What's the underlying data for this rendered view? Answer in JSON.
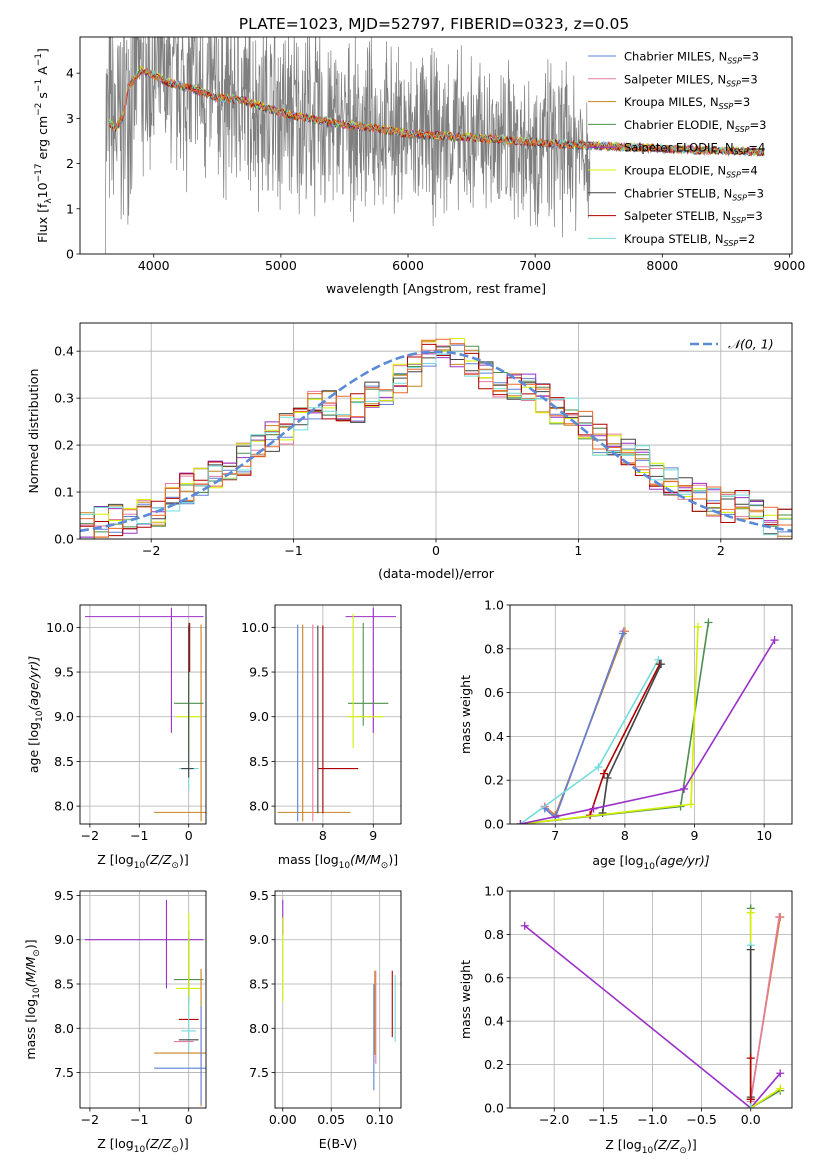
{
  "figure": {
    "title": "PLATE=1023, MJD=52797, FIBERID=0323, z=0.05"
  },
  "colors": {
    "Chabrier MILES": "#5e81d8",
    "Salpeter MILES": "#e57ba0",
    "Kroupa MILES": "#c7821f",
    "Chabrier ELODIE": "#4e8f4e",
    "Salpeter ELODIE": "#9b30c8",
    "Kroupa ELODIE": "#d4f000",
    "Chabrier STELIB": "#444444",
    "Salpeter STELIB": "#b00000",
    "Kroupa STELIB": "#74dcdc",
    "orange_model": "#ec6a2a",
    "observed": "#7f7f7f",
    "normal": "#5b8bd8"
  },
  "chart_data": [
    {
      "id": "spectrum",
      "type": "line",
      "title": "PLATE=1023, MJD=52797, FIBERID=0323, z=0.05",
      "xlabel": "wavelength [Angstrom, rest frame]",
      "ylabel_main": "Flux [f",
      "ylabel_sub": "λ",
      "ylabel_rest": "10",
      "ylabel_exp": "−17",
      "ylabel_tail": " erg cm",
      "ylabel_tail_exp": "−2",
      "ylabel_tail2": " s",
      "ylabel_tail2_exp": "−1",
      "ylabel_tail3": " A",
      "ylabel_tail3_exp": "−1",
      "ylabel_end": "]",
      "xlim": [
        3420,
        9020
      ],
      "ylim": [
        0,
        4.8
      ],
      "xticks": [
        4000,
        5000,
        6000,
        7000,
        8000,
        9000
      ],
      "yticks": [
        0,
        1,
        2,
        3,
        4
      ],
      "legend_position": "top-right",
      "legend": [
        {
          "name": "Chabrier MILES",
          "nssp": "3"
        },
        {
          "name": "Salpeter MILES",
          "nssp": "3"
        },
        {
          "name": "Kroupa MILES",
          "nssp": "3"
        },
        {
          "name": "Chabrier ELODIE",
          "nssp": "3"
        },
        {
          "name": "Salpeter ELODIE",
          "nssp": "4"
        },
        {
          "name": "Kroupa ELODIE",
          "nssp": "4"
        },
        {
          "name": "Chabrier STELIB",
          "nssp": "3"
        },
        {
          "name": "Salpeter STELIB",
          "nssp": "3"
        },
        {
          "name": "Kroupa STELIB",
          "nssp": "2"
        }
      ],
      "nssp_label": "N",
      "nssp_sub": "SSP",
      "observed_range": [
        3620,
        7430
      ],
      "model_continuum": {
        "x": [
          3650,
          3700,
          3760,
          3800,
          3900,
          4000,
          4100,
          4300,
          4500,
          4700,
          4900,
          5100,
          5300,
          5500,
          5700,
          6000,
          6300,
          6600,
          6900,
          7200,
          7500,
          7800,
          8200,
          8600,
          8800
        ],
        "y": [
          2.9,
          2.75,
          3.05,
          3.7,
          4.05,
          3.95,
          3.8,
          3.65,
          3.45,
          3.4,
          3.2,
          3.05,
          2.95,
          2.85,
          2.8,
          2.65,
          2.6,
          2.55,
          2.48,
          2.42,
          2.38,
          2.35,
          2.3,
          2.26,
          2.25
        ]
      }
    },
    {
      "id": "residuals",
      "type": "step",
      "xlabel": "(data-model)/error",
      "ylabel": "Normed distribution",
      "xlim": [
        -2.5,
        2.5
      ],
      "ylim": [
        0,
        0.46
      ],
      "xticks": [
        -2,
        -1,
        0,
        1,
        2
      ],
      "yticks": [
        0.0,
        0.1,
        0.2,
        0.3,
        0.4
      ],
      "xtick_labels": [
        "−2",
        "−1",
        "0",
        "1",
        "2"
      ],
      "ytick_labels": [
        "0.0",
        "0.1",
        "0.2",
        "0.3",
        "0.4"
      ],
      "legend_label": "𝒩(0, 1)",
      "legend_position": "top-right",
      "bins": [
        -2.5,
        -2.4,
        -2.3,
        -2.2,
        -2.1,
        -2.0,
        -1.9,
        -1.8,
        -1.7,
        -1.6,
        -1.5,
        -1.4,
        -1.3,
        -1.2,
        -1.1,
        -1.0,
        -0.9,
        -0.8,
        -0.7,
        -0.6,
        -0.5,
        -0.4,
        -0.3,
        -0.2,
        -0.1,
        0.0,
        0.1,
        0.2,
        0.3,
        0.4,
        0.5,
        0.6,
        0.7,
        0.8,
        0.9,
        1.0,
        1.1,
        1.2,
        1.3,
        1.4,
        1.5,
        1.6,
        1.7,
        1.8,
        1.9,
        2.0,
        2.1,
        2.2,
        2.3,
        2.4,
        2.5
      ],
      "histogram": [
        0.03,
        0.035,
        0.04,
        0.045,
        0.05,
        0.055,
        0.09,
        0.11,
        0.12,
        0.14,
        0.16,
        0.17,
        0.2,
        0.22,
        0.235,
        0.26,
        0.28,
        0.29,
        0.27,
        0.28,
        0.3,
        0.32,
        0.34,
        0.36,
        0.4,
        0.42,
        0.4,
        0.38,
        0.35,
        0.33,
        0.33,
        0.32,
        0.3,
        0.28,
        0.27,
        0.24,
        0.21,
        0.2,
        0.19,
        0.17,
        0.14,
        0.12,
        0.11,
        0.09,
        0.08,
        0.07,
        0.07,
        0.06,
        0.04,
        0.035
      ]
    },
    {
      "id": "age_vs_Z",
      "type": "errorbar",
      "xlabel": "Z [log",
      "xlabel_sub": "10",
      "xlabel_tail": "(Z/Z",
      "xlabel_sun": "⊙",
      "xlabel_end": ")]",
      "ylabel": "age  [log",
      "ylabel_sub": "10",
      "ylabel_tail": "(age/yr)]",
      "xlim": [
        -2.2,
        0.35
      ],
      "ylim": [
        7.8,
        10.25
      ],
      "xticks": [
        -2,
        -1,
        0
      ],
      "xtick_labels": [
        "−2",
        "−1",
        "0"
      ],
      "yticks": [
        8.0,
        8.5,
        9.0,
        9.5,
        10.0
      ],
      "ytick_labels": [
        "8.0",
        "8.5",
        "9.0",
        "9.5",
        "10.0"
      ]
    },
    {
      "id": "age_vs_mass",
      "type": "errorbar",
      "xlabel": "mass [log",
      "xlabel_sub": "10",
      "xlabel_tail": "(M/M",
      "xlabel_sun": "⊙",
      "xlabel_end": ")]",
      "xlim": [
        7.05,
        9.55
      ],
      "ylim": [
        7.8,
        10.25
      ],
      "xticks": [
        8,
        9
      ],
      "xtick_labels": [
        "8",
        "9"
      ],
      "yticks": [
        8.0,
        8.5,
        9.0,
        9.5,
        10.0
      ],
      "ytick_labels": [
        "8.0",
        "8.5",
        "9.0",
        "9.5",
        "10.0"
      ]
    },
    {
      "id": "weight_vs_age",
      "type": "line",
      "xlabel": "age  [log",
      "xlabel_sub": "10",
      "xlabel_tail": "(age/yr)]",
      "ylabel": "mass weight",
      "xlim": [
        6.35,
        10.4
      ],
      "ylim": [
        0,
        1.0
      ],
      "xticks": [
        7,
        8,
        9,
        10
      ],
      "xtick_labels": [
        "7",
        "8",
        "9",
        "10"
      ],
      "yticks": [
        0.0,
        0.2,
        0.4,
        0.6,
        0.8,
        1.0
      ],
      "ytick_labels": [
        "0.0",
        "0.2",
        "0.4",
        "0.6",
        "0.8",
        "1.0"
      ],
      "series": [
        {
          "name": "Kroupa MILES",
          "x": [
            6.85,
            7.0,
            8.0
          ],
          "y": [
            0.08,
            0.04,
            0.88
          ]
        },
        {
          "name": "Salpeter MILES",
          "x": [
            6.85,
            7.0,
            7.98
          ],
          "y": [
            0.08,
            0.03,
            0.88
          ]
        },
        {
          "name": "Chabrier MILES",
          "x": [
            6.85,
            7.0,
            7.97
          ],
          "y": [
            0.07,
            0.03,
            0.87
          ]
        },
        {
          "name": "Kroupa STELIB",
          "x": [
            6.5,
            7.62,
            8.48
          ],
          "y": [
            0.0,
            0.26,
            0.75
          ]
        },
        {
          "name": "Salpeter STELIB",
          "x": [
            7.5,
            7.7,
            8.5
          ],
          "y": [
            0.04,
            0.23,
            0.73
          ]
        },
        {
          "name": "Chabrier STELIB",
          "x": [
            7.68,
            7.75,
            8.52
          ],
          "y": [
            0.05,
            0.21,
            0.73
          ]
        },
        {
          "name": "Chabrier ELODIE",
          "x": [
            6.5,
            8.8,
            9.2
          ],
          "y": [
            0.0,
            0.08,
            0.92
          ]
        },
        {
          "name": "Kroupa ELODIE",
          "x": [
            6.5,
            8.95,
            9.05
          ],
          "y": [
            0.0,
            0.09,
            0.9
          ]
        },
        {
          "name": "Salpeter ELODIE",
          "x": [
            6.5,
            7.55,
            8.85,
            10.15
          ],
          "y": [
            0.0,
            0.07,
            0.16,
            0.84
          ]
        }
      ]
    },
    {
      "id": "mass_vs_Z",
      "type": "errorbar",
      "xlabel": "Z [log",
      "xlabel_sub": "10",
      "xlabel_tail": "(Z/Z",
      "xlabel_sun": "⊙",
      "xlabel_end": ")]",
      "ylabel": "mass [log",
      "ylabel_sub": "10",
      "ylabel_tail": "(M/M",
      "ylabel_sun": "⊙",
      "ylabel_end": ")]",
      "xlim": [
        -2.2,
        0.35
      ],
      "ylim": [
        7.1,
        9.55
      ],
      "xticks": [
        -2,
        -1,
        0
      ],
      "xtick_labels": [
        "−2",
        "−1",
        "0"
      ],
      "yticks": [
        7.5,
        8.0,
        8.5,
        9.0,
        9.5
      ],
      "ytick_labels": [
        "7.5",
        "8.0",
        "8.5",
        "9.0",
        "9.5"
      ]
    },
    {
      "id": "mass_vs_EBV",
      "type": "errorbar",
      "xlabel": "E(B-V)",
      "xlim": [
        -0.008,
        0.122
      ],
      "ylim": [
        7.1,
        9.55
      ],
      "xticks": [
        0.0,
        0.05,
        0.1
      ],
      "xtick_labels": [
        "0.00",
        "0.05",
        "0.10"
      ],
      "yticks": [
        7.5,
        8.0,
        8.5,
        9.0,
        9.5
      ],
      "ytick_labels": [
        "7.5",
        "8.0",
        "8.5",
        "9.0",
        "9.5"
      ]
    },
    {
      "id": "weight_vs_Z",
      "type": "line",
      "xlabel": "Z [log",
      "xlabel_sub": "10",
      "xlabel_tail": "(Z/Z",
      "xlabel_sun": "⊙",
      "xlabel_end": ")]",
      "ylabel": "mass weight",
      "xlim": [
        -2.45,
        0.42
      ],
      "ylim": [
        0,
        1.0
      ],
      "xticks": [
        -2.0,
        -1.5,
        -1.0,
        -0.5,
        0.0
      ],
      "xtick_labels": [
        "−2.0",
        "−1.5",
        "−1.0",
        "−0.5",
        "0.0"
      ],
      "yticks": [
        0.0,
        0.2,
        0.4,
        0.6,
        0.8,
        1.0
      ],
      "ytick_labels": [
        "0.0",
        "0.2",
        "0.4",
        "0.6",
        "0.8",
        "1.0"
      ],
      "series": [
        {
          "name": "Salpeter ELODIE",
          "x": [
            -2.3,
            0.0,
            0.3
          ],
          "y": [
            0.84,
            0.0,
            0.16
          ]
        },
        {
          "name": "Kroupa MILES",
          "x": [
            0.0,
            0.3
          ],
          "y": [
            0.04,
            0.88
          ]
        },
        {
          "name": "Salpeter MILES",
          "x": [
            0.0,
            0.29
          ],
          "y": [
            0.03,
            0.88
          ]
        },
        {
          "name": "Chabrier ELODIE",
          "x": [
            0.0,
            0.0,
            0.3
          ],
          "y": [
            0.92,
            0.0,
            0.08
          ]
        },
        {
          "name": "Kroupa ELODIE",
          "x": [
            0.0,
            0.0,
            0.3
          ],
          "y": [
            0.9,
            0.0,
            0.09
          ]
        },
        {
          "name": "Kroupa STELIB",
          "x": [
            0.0,
            0.0
          ],
          "y": [
            0.0,
            0.75
          ]
        },
        {
          "name": "Chabrier STELIB",
          "x": [
            0.0,
            0.0
          ],
          "y": [
            0.05,
            0.73
          ]
        },
        {
          "name": "Salpeter STELIB",
          "x": [
            0.0,
            0.0
          ],
          "y": [
            0.04,
            0.23
          ]
        }
      ]
    }
  ]
}
